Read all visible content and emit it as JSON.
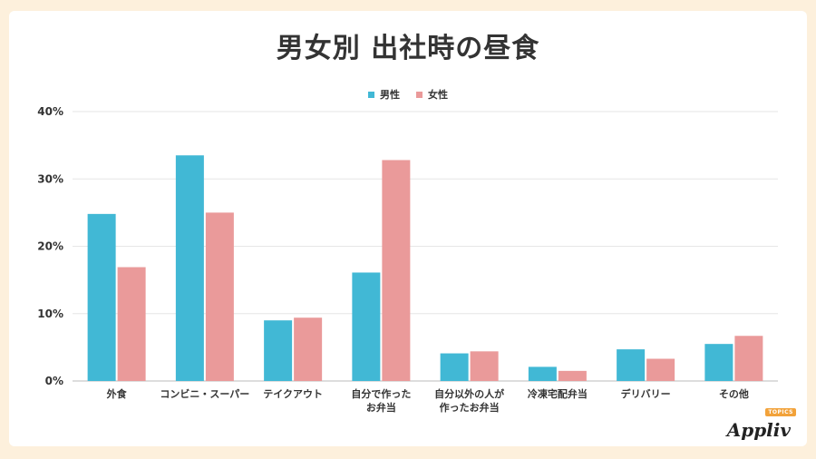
{
  "chart_data": {
    "type": "bar",
    "title": "男女別 出社時の昼食",
    "categories": [
      "外食",
      "コンビニ・スーパー",
      "テイクアウト",
      "自分で作った\nお弁当",
      "自分以外の人が\n作ったお弁当",
      "冷凍宅配弁当",
      "デリバリー",
      "その他"
    ],
    "series": [
      {
        "name": "男性",
        "color": "#41b8d5",
        "values": [
          24.8,
          33.5,
          9.0,
          16.1,
          4.1,
          2.1,
          4.7,
          5.5
        ]
      },
      {
        "name": "女性",
        "color": "#ea9a9a",
        "values": [
          16.9,
          25.0,
          9.4,
          32.8,
          4.4,
          1.5,
          3.3,
          6.7
        ]
      }
    ],
    "ylim": [
      0,
      40
    ],
    "yticks": [
      0,
      10,
      20,
      30,
      40
    ],
    "ytick_labels": [
      "0%",
      "10%",
      "20%",
      "30%",
      "40%"
    ],
    "xlabel": "",
    "ylabel": "",
    "grid": true,
    "legend": "top-center"
  },
  "logo": {
    "text": "Appliv",
    "badge": "TOPICS"
  }
}
